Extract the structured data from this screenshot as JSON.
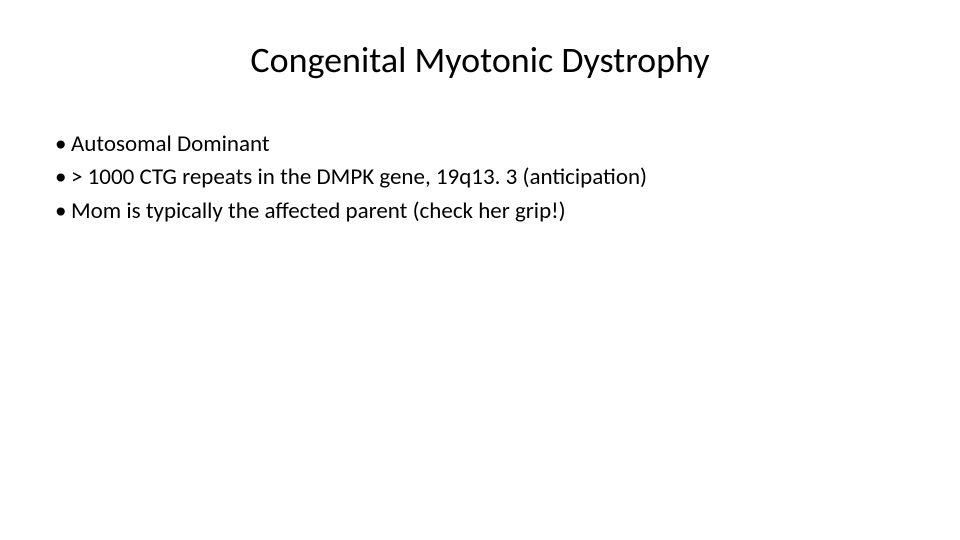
{
  "slide": {
    "title": "Congenital Myotonic Dystrophy",
    "title_fontsize": 36,
    "title_color": "#000000",
    "body_fontsize": 23,
    "body_color": "#000000",
    "background_color": "#ffffff",
    "bullet_marker": "•",
    "bullets": [
      "Autosomal Dominant",
      "> 1000 CTG repeats in the DMPK gene, 19q13. 3 (anticipation)",
      "Mom is typically the affected parent (check her grip!)"
    ]
  }
}
